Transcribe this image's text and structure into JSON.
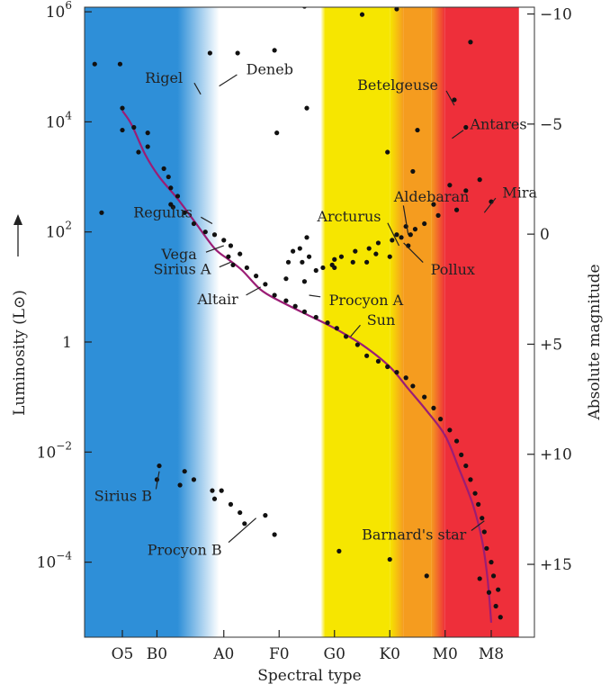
{
  "chart_data": {
    "type": "scatter",
    "title": "",
    "xlabel": "Spectral type",
    "ylabel": "Luminosity (L⊙)",
    "y2label": "Absolute magnitude",
    "x_categories": [
      "O5",
      "B0",
      "A0",
      "F0",
      "G0",
      "K0",
      "M0",
      "M8"
    ],
    "x_category_pos": [
      0,
      0.75,
      2.2,
      3.4,
      4.6,
      5.8,
      7.0,
      8.0
    ],
    "yscale": "log",
    "ylim_log10": [
      -5.4,
      6.2
    ],
    "y_ticks": [
      {
        "exp": 6,
        "label": "10",
        "sup": "6"
      },
      {
        "exp": 4,
        "label": "10",
        "sup": "4"
      },
      {
        "exp": 2,
        "label": "10",
        "sup": "2"
      },
      {
        "exp": 0,
        "label": "1",
        "sup": ""
      },
      {
        "exp": -2,
        "label": "10",
        "sup": "−2"
      },
      {
        "exp": -4,
        "label": "10",
        "sup": "−4"
      }
    ],
    "mag_ticks": [
      {
        "mag": -10,
        "label": "−10"
      },
      {
        "mag": -5,
        "label": "−5"
      },
      {
        "mag": 0,
        "label": "0"
      },
      {
        "mag": 5,
        "label": "+5"
      },
      {
        "mag": 10,
        "label": "+10"
      },
      {
        "mag": 15,
        "label": "+15"
      }
    ],
    "mag_zero_log10L": 1.96,
    "main_sequence": [
      [
        0.0,
        4.2
      ],
      [
        0.2,
        3.95
      ],
      [
        0.5,
        3.4
      ],
      [
        0.8,
        3.0
      ],
      [
        1.2,
        2.6
      ],
      [
        1.6,
        2.15
      ],
      [
        2.0,
        1.7
      ],
      [
        2.3,
        1.5
      ],
      [
        2.6,
        1.3
      ],
      [
        3.0,
        0.95
      ],
      [
        3.4,
        0.75
      ],
      [
        4.0,
        0.5
      ],
      [
        4.6,
        0.25
      ],
      [
        5.2,
        -0.05
      ],
      [
        5.8,
        -0.45
      ],
      [
        6.2,
        -0.85
      ],
      [
        6.6,
        -1.25
      ],
      [
        7.0,
        -1.7
      ],
      [
        7.3,
        -2.3
      ],
      [
        7.6,
        -2.95
      ],
      [
        7.8,
        -3.6
      ],
      [
        7.92,
        -4.3
      ],
      [
        8.0,
        -5.1
      ]
    ],
    "main_sequence_color": "#9b1d75",
    "stars": [
      [
        -0.45,
        2.35
      ],
      [
        0.0,
        4.25
      ],
      [
        0.0,
        3.85
      ],
      [
        0.25,
        3.9
      ],
      [
        0.55,
        3.8
      ],
      [
        0.55,
        3.55
      ],
      [
        0.35,
        3.45
      ],
      [
        0.9,
        3.15
      ],
      [
        1.0,
        3.0
      ],
      [
        1.05,
        2.8
      ],
      [
        1.2,
        2.65
      ],
      [
        1.05,
        2.5
      ],
      [
        1.1,
        2.45
      ],
      [
        1.35,
        2.35
      ],
      [
        1.55,
        2.15
      ],
      [
        1.8,
        2.0
      ],
      [
        2.0,
        1.95
      ],
      [
        2.2,
        1.85
      ],
      [
        2.35,
        1.75
      ],
      [
        2.55,
        1.6
      ],
      [
        2.3,
        1.55
      ],
      [
        2.4,
        1.4
      ],
      [
        2.7,
        1.35
      ],
      [
        2.9,
        1.2
      ],
      [
        3.1,
        1.05
      ],
      [
        3.3,
        0.85
      ],
      [
        3.55,
        0.75
      ],
      [
        3.75,
        0.65
      ],
      [
        3.95,
        0.55
      ],
      [
        4.2,
        0.45
      ],
      [
        4.45,
        0.35
      ],
      [
        4.65,
        0.25
      ],
      [
        4.85,
        0.1
      ],
      [
        5.1,
        -0.05
      ],
      [
        5.3,
        -0.25
      ],
      [
        5.55,
        -0.35
      ],
      [
        5.75,
        -0.45
      ],
      [
        5.95,
        -0.55
      ],
      [
        6.15,
        -0.65
      ],
      [
        6.3,
        -0.8
      ],
      [
        6.55,
        -1.0
      ],
      [
        6.75,
        -1.2
      ],
      [
        6.9,
        -1.4
      ],
      [
        7.1,
        -1.6
      ],
      [
        7.25,
        -1.8
      ],
      [
        7.35,
        -2.05
      ],
      [
        7.45,
        -2.25
      ],
      [
        7.55,
        -2.5
      ],
      [
        7.65,
        -2.75
      ],
      [
        7.72,
        -2.95
      ],
      [
        7.8,
        -3.2
      ],
      [
        7.85,
        -3.45
      ],
      [
        7.9,
        -3.75
      ],
      [
        8.0,
        -4.0
      ],
      [
        8.05,
        -4.25
      ],
      [
        7.95,
        -4.55
      ],
      [
        8.1,
        -4.8
      ],
      [
        8.2,
        -5.0
      ],
      [
        7.75,
        -4.3
      ],
      [
        8.15,
        -4.5
      ],
      [
        -0.6,
        5.05
      ],
      [
        -0.05,
        5.05
      ],
      [
        1.9,
        5.25
      ],
      [
        2.5,
        5.25
      ],
      [
        3.3,
        5.3
      ],
      [
        3.35,
        3.8
      ],
      [
        4.0,
        4.25
      ],
      [
        3.95,
        6.1
      ],
      [
        5.2,
        5.95
      ],
      [
        5.95,
        6.05
      ],
      [
        7.55,
        5.45
      ],
      [
        7.2,
        4.4
      ],
      [
        7.45,
        3.9
      ],
      [
        5.75,
        3.45
      ],
      [
        6.3,
        3.1
      ],
      [
        6.4,
        3.85
      ],
      [
        7.45,
        2.75
      ],
      [
        7.75,
        2.95
      ],
      [
        7.1,
        2.85
      ],
      [
        8.0,
        2.55
      ],
      [
        7.25,
        2.4
      ],
      [
        6.75,
        2.5
      ],
      [
        6.85,
        2.3
      ],
      [
        6.35,
        2.05
      ],
      [
        6.25,
        1.95
      ],
      [
        6.05,
        1.9
      ],
      [
        6.2,
        1.75
      ],
      [
        5.85,
        1.85
      ],
      [
        5.55,
        1.8
      ],
      [
        5.35,
        1.7
      ],
      [
        5.05,
        1.65
      ],
      [
        5.0,
        1.45
      ],
      [
        5.3,
        1.45
      ],
      [
        5.5,
        1.6
      ],
      [
        5.8,
        1.55
      ],
      [
        4.75,
        1.55
      ],
      [
        4.35,
        1.35
      ],
      [
        4.05,
        1.55
      ],
      [
        3.9,
        1.45
      ],
      [
        3.7,
        1.65
      ],
      [
        3.85,
        1.7
      ],
      [
        4.6,
        1.5
      ],
      [
        3.6,
        1.45
      ],
      [
        3.55,
        1.15
      ],
      [
        4.2,
        1.3
      ],
      [
        3.95,
        1.1
      ],
      [
        4.55,
        1.4
      ],
      [
        4.0,
        1.9
      ],
      [
        4.6,
        1.35
      ],
      [
        6.15,
        2.1
      ],
      [
        5.95,
        1.95
      ],
      [
        6.55,
        2.15
      ],
      [
        0.8,
        -2.25
      ],
      [
        0.75,
        -2.5
      ],
      [
        1.35,
        -2.35
      ],
      [
        1.55,
        -2.5
      ],
      [
        1.25,
        -2.6
      ],
      [
        1.95,
        -2.7
      ],
      [
        2.15,
        -2.7
      ],
      [
        2.0,
        -2.85
      ],
      [
        2.35,
        -2.95
      ],
      [
        2.55,
        -3.1
      ],
      [
        2.65,
        -3.3
      ],
      [
        3.1,
        -3.15
      ],
      [
        3.3,
        -3.5
      ],
      [
        4.7,
        -3.8
      ],
      [
        5.8,
        -3.95
      ],
      [
        6.6,
        -4.25
      ]
    ],
    "spectral_bands": [
      {
        "color": "#2e8fd8",
        "from": -1.0,
        "to": 1.2,
        "fade_to": 2.1
      },
      {
        "color": "#ffffff",
        "from": 2.1,
        "to": 4.3
      },
      {
        "color": "#f6e600",
        "from": 4.4,
        "to": 5.8,
        "fade_from": 4.3
      },
      {
        "color": "#f59c1f",
        "from": 6.1,
        "to": 6.7
      },
      {
        "color": "#ee2f3a",
        "from": 7.0,
        "to": 8.6
      }
    ],
    "annotations": [
      {
        "text": "Rigel",
        "star": [
          1.7,
          4.5
        ],
        "anchor": "end"
      },
      {
        "text": "Deneb",
        "star": [
          2.1,
          4.65
        ],
        "anchor": "start"
      },
      {
        "text": "Betelgeuse",
        "star": [
          7.2,
          4.3
        ],
        "anchor": "end"
      },
      {
        "text": "Antares",
        "star": [
          7.15,
          3.7
        ],
        "anchor": "start"
      },
      {
        "text": "Aldebaran",
        "star": [
          6.2,
          1.95
        ],
        "anchor": "start"
      },
      {
        "text": "Mira",
        "star": [
          7.85,
          2.35
        ],
        "anchor": "start"
      },
      {
        "text": "Arcturus",
        "star": [
          6.0,
          1.75
        ],
        "anchor": "end"
      },
      {
        "text": "Pollux",
        "star": [
          6.1,
          1.8
        ],
        "anchor": "start"
      },
      {
        "text": "Regulus",
        "star": [
          1.95,
          2.15
        ],
        "anchor": "end"
      },
      {
        "text": "Vega",
        "star": [
          2.2,
          1.75
        ],
        "anchor": "end"
      },
      {
        "text": "Sirius A",
        "star": [
          2.35,
          1.45
        ],
        "anchor": "end"
      },
      {
        "text": "Altair",
        "star": [
          3.0,
          1.0
        ],
        "anchor": "end"
      },
      {
        "text": "Procyon A",
        "star": [
          4.05,
          0.85
        ],
        "anchor": "start"
      },
      {
        "text": "Sun",
        "star": [
          4.95,
          0.1
        ],
        "anchor": "start"
      },
      {
        "text": "Sirius B",
        "star": [
          0.8,
          -2.35
        ],
        "anchor": "end"
      },
      {
        "text": "Procyon B",
        "star": [
          2.9,
          -3.2
        ],
        "anchor": "end"
      },
      {
        "text": "Barnard's star",
        "star": [
          7.85,
          -3.25
        ],
        "anchor": "end"
      }
    ]
  }
}
